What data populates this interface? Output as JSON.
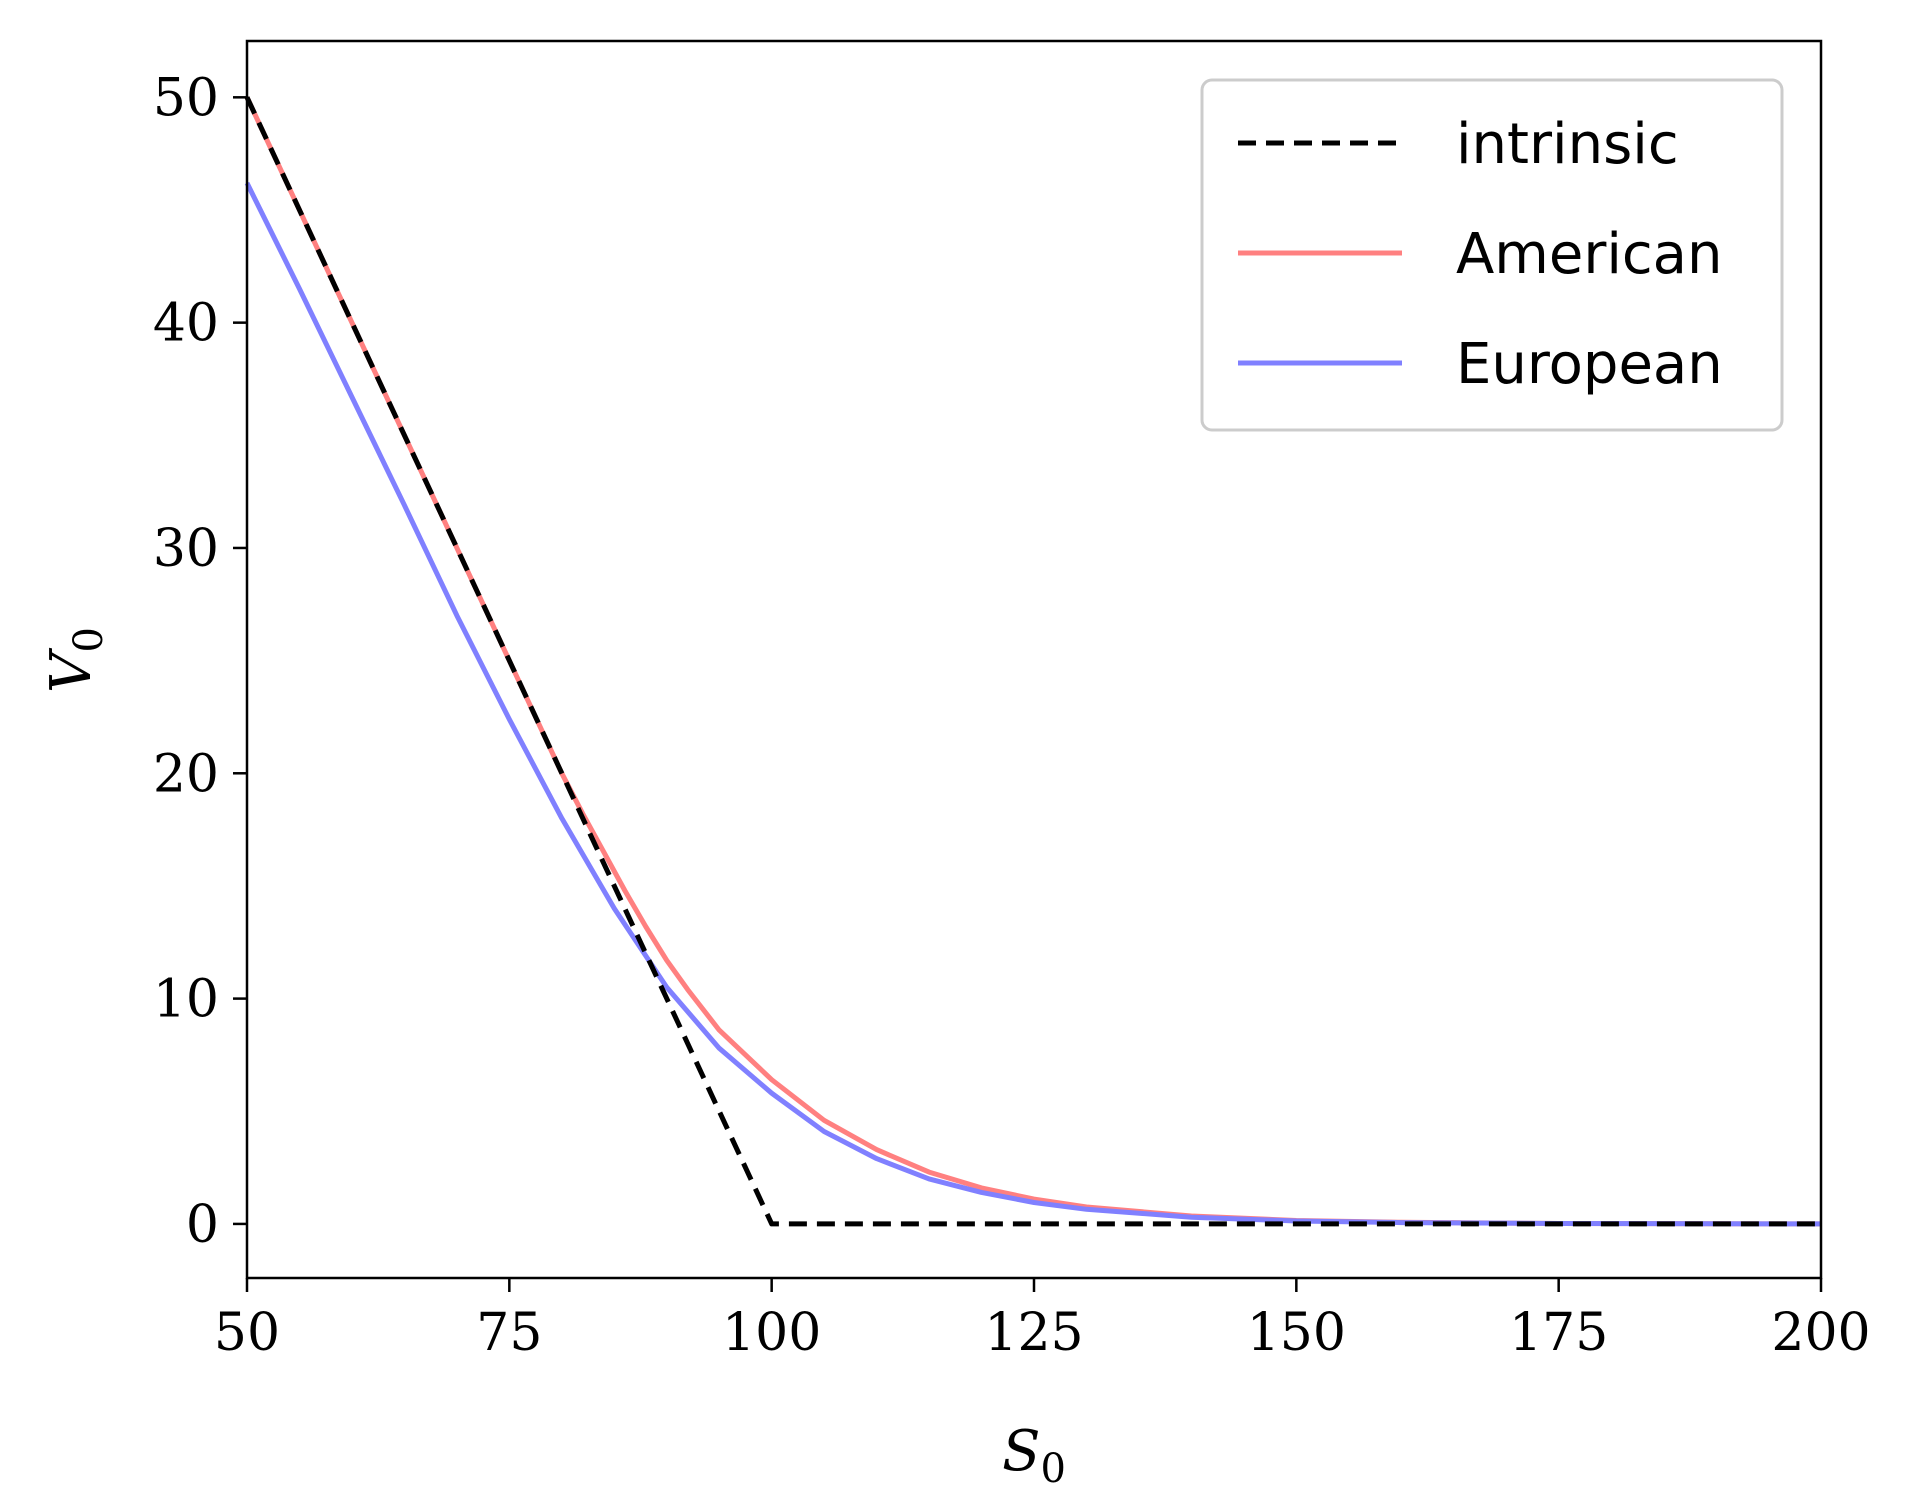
{
  "chart_data": {
    "type": "line",
    "title": "",
    "xlabel": "S",
    "xlabel_subscript": "0",
    "ylabel": "V",
    "ylabel_subscript": "0",
    "xlim": [
      50,
      200
    ],
    "ylim": [
      -2.4,
      52.5
    ],
    "xticks": [
      50,
      75,
      100,
      125,
      150,
      175,
      200
    ],
    "yticks": [
      0,
      10,
      20,
      30,
      40,
      50
    ],
    "grid": false,
    "legend": "top-right",
    "series": [
      {
        "name": "intrinsic",
        "color": "#000000",
        "style": "dashed",
        "x": [
          50,
          100,
          200
        ],
        "y": [
          50,
          0,
          0
        ]
      },
      {
        "name": "American",
        "color": "#ff8080",
        "style": "solid",
        "x": [
          50,
          60,
          70,
          80,
          82,
          84,
          86,
          88,
          90,
          92,
          95,
          100,
          105,
          110,
          115,
          120,
          125,
          130,
          140,
          150,
          160,
          175,
          200
        ],
        "y": [
          50,
          40,
          30,
          20,
          18.2,
          16.5,
          14.8,
          13.2,
          11.7,
          10.4,
          8.6,
          6.4,
          4.6,
          3.3,
          2.3,
          1.6,
          1.1,
          0.75,
          0.35,
          0.15,
          0.07,
          0.02,
          0
        ]
      },
      {
        "name": "European",
        "color": "#8080ff",
        "style": "solid",
        "x": [
          50,
          55,
          60,
          65,
          70,
          75,
          80,
          85,
          90,
          95,
          100,
          105,
          110,
          115,
          120,
          125,
          130,
          140,
          150,
          160,
          175,
          200
        ],
        "y": [
          46.2,
          41.5,
          36.7,
          31.9,
          27.0,
          22.4,
          18.0,
          14.0,
          10.5,
          7.8,
          5.8,
          4.1,
          2.9,
          2.0,
          1.4,
          0.95,
          0.65,
          0.3,
          0.13,
          0.06,
          0.02,
          0
        ]
      }
    ]
  }
}
